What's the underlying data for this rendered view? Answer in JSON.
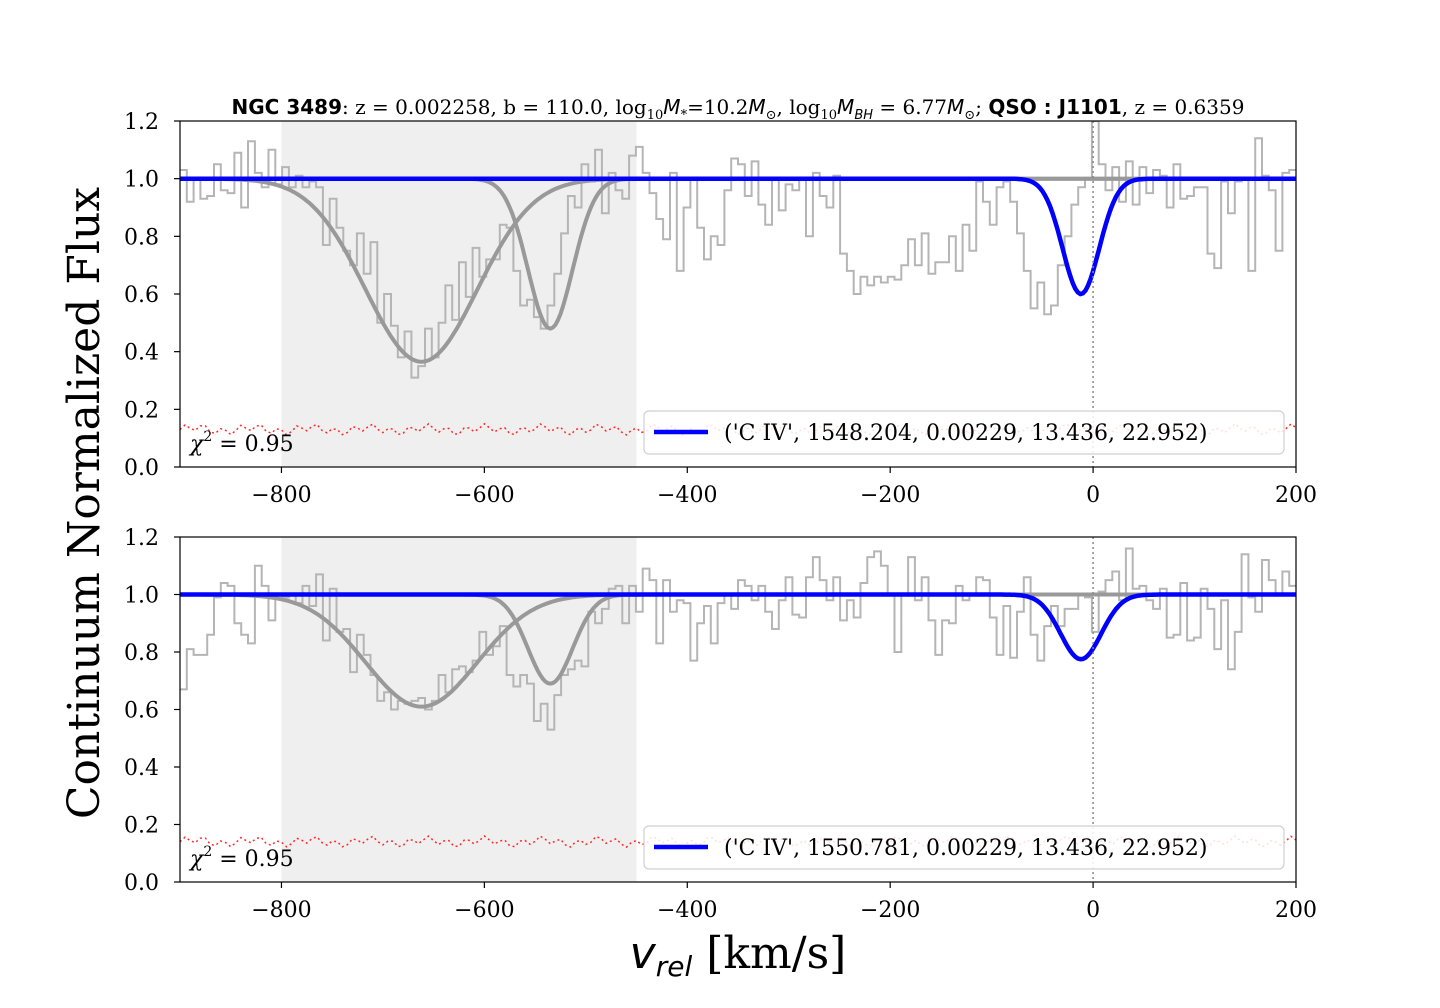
{
  "chart_data": {
    "type": "line",
    "title": {
      "galaxy": "NGC 3489",
      "z_text": ": z = 0.002258, b = 110.0, log",
      "mstar_val": "=10.2",
      "mbh_pre": ", log",
      "mbh_val": " = 6.77",
      "qso_label": "QSO : J1101",
      "qso_z": ", z = 0.6359"
    },
    "ylabel": "Continuum Normalized Flux",
    "xlabel_var": "v",
    "xlabel_sub": "rel",
    "xlabel_unit": " [km/s]",
    "xlim": [
      -900,
      200
    ],
    "ylim": [
      0.0,
      1.2
    ],
    "x_ticks": [
      -800,
      -600,
      -400,
      -200,
      0,
      200
    ],
    "x_tick_labels": [
      "−800",
      "−600",
      "−400",
      "−200",
      "0",
      "200"
    ],
    "y_ticks": [
      0.0,
      0.2,
      0.4,
      0.6,
      0.8,
      1.0,
      1.2
    ],
    "y_tick_labels": [
      "0.0",
      "0.2",
      "0.4",
      "0.6",
      "0.8",
      "1.0",
      "1.2"
    ],
    "shaded_region": [
      -800,
      -450
    ],
    "vline_x": 0,
    "panels": [
      {
        "legend_label": "('C IV', 1548.204, 0.00229, 13.436, 22.952)",
        "chi2_text": " = 0.95",
        "fit_component": {
          "center": -12,
          "depth": 0.4,
          "sigma": 18
        },
        "gray_components": [
          {
            "center": -662,
            "depth": 0.635,
            "sigma": 55
          },
          {
            "center": -535,
            "depth": 0.52,
            "sigma": 22
          }
        ],
        "error_level": 0.13,
        "spectrum_flux": [
          1.03,
          0.92,
          1.0,
          0.93,
          0.94,
          1.05,
          0.96,
          0.95,
          1.09,
          0.9,
          1.13,
          1.02,
          0.97,
          1.1,
          0.98,
          1.04,
          0.97,
          1.01,
          0.97,
          0.99,
          0.97,
          0.77,
          0.93,
          0.83,
          0.75,
          0.7,
          0.81,
          0.67,
          0.78,
          0.5,
          0.6,
          0.49,
          0.38,
          0.47,
          0.31,
          0.35,
          0.48,
          0.38,
          0.5,
          0.63,
          0.51,
          0.71,
          0.59,
          0.76,
          0.66,
          0.72,
          0.72,
          0.84,
          0.83,
          0.68,
          0.56,
          0.58,
          0.52,
          0.48,
          0.56,
          0.67,
          0.81,
          0.94,
          0.9,
          1.05,
          0.99,
          1.1,
          0.88,
          1.02,
          0.96,
          0.93,
          1.08,
          1.11,
          1.02,
          0.95,
          0.86,
          0.79,
          1.02,
          0.68,
          0.9,
          1.0,
          0.83,
          0.72,
          0.8,
          0.77,
          0.96,
          1.07,
          1.05,
          0.94,
          1.06,
          0.91,
          0.84,
          1.0,
          0.89,
          0.98,
          0.96,
          1.0,
          0.8,
          1.02,
          0.94,
          0.9,
          1.01,
          0.74,
          0.68,
          0.6,
          0.66,
          0.63,
          0.66,
          0.64,
          0.66,
          0.65,
          0.7,
          0.79,
          0.7,
          0.81,
          0.67,
          0.71,
          0.71,
          0.8,
          0.68,
          0.84,
          0.75,
          0.99,
          0.92,
          0.84,
          0.97,
          0.99,
          0.92,
          0.81,
          0.68,
          0.55,
          0.64,
          0.53,
          0.56,
          0.7,
          0.8,
          0.91,
          0.97,
          1.0,
          1.2,
          1.05,
          0.96,
          1.04,
          0.92,
          1.06,
          0.91,
          1.04,
          0.95,
          1.03,
          1.01,
          0.9,
          1.05,
          0.93,
          0.94,
          0.97,
          0.97,
          0.74,
          0.69,
          0.99,
          0.88,
          0.99,
          1.0,
          0.68,
          1.14,
          1.01,
          0.96,
          0.75,
          1.02,
          1.03
        ]
      },
      {
        "legend_label": "('C IV', 1550.781, 0.00229, 13.436, 22.952)",
        "chi2_text": " = 0.95",
        "fit_component": {
          "center": -12,
          "depth": 0.225,
          "sigma": 20
        },
        "gray_components": [
          {
            "center": -662,
            "depth": 0.39,
            "sigma": 55
          },
          {
            "center": -535,
            "depth": 0.31,
            "sigma": 22
          }
        ],
        "error_level": 0.14,
        "spectrum_flux": [
          0.67,
          0.81,
          0.79,
          0.79,
          0.86,
          0.99,
          1.04,
          1.03,
          0.9,
          0.86,
          0.83,
          1.1,
          1.03,
          0.91,
          1.0,
          0.99,
          1.0,
          0.97,
          1.03,
          0.96,
          1.07,
          0.84,
          1.02,
          0.87,
          0.88,
          0.73,
          0.86,
          0.79,
          0.72,
          0.63,
          0.66,
          0.6,
          0.63,
          0.62,
          0.63,
          0.64,
          0.6,
          0.63,
          0.72,
          0.66,
          0.74,
          0.75,
          0.73,
          0.77,
          0.87,
          0.79,
          0.82,
          0.89,
          0.72,
          0.68,
          0.72,
          0.69,
          0.56,
          0.62,
          0.53,
          0.65,
          0.72,
          0.74,
          0.77,
          0.75,
          0.94,
          0.9,
          0.95,
          1.02,
          1.03,
          0.9,
          1.03,
          0.94,
          1.09,
          1.05,
          0.83,
          1.05,
          0.94,
          0.98,
          0.97,
          0.77,
          0.9,
          0.96,
          0.83,
          0.97,
          1.0,
          0.95,
          1.05,
          1.03,
          0.98,
          1.03,
          0.94,
          0.88,
          0.98,
          1.06,
          0.93,
          0.92,
          1.06,
          1.13,
          1.05,
          0.98,
          1.06,
          0.91,
          0.98,
          0.92,
          1.04,
          1.13,
          1.15,
          1.1,
          1.0,
          0.8,
          1.0,
          1.13,
          0.98,
          1.06,
          0.91,
          0.79,
          0.91,
          0.9,
          1.03,
          0.98,
          1.0,
          1.06,
          1.05,
          0.92,
          0.79,
          0.96,
          0.78,
          0.94,
          1.06,
          0.86,
          0.77,
          0.89,
          0.96,
          0.89,
          0.95,
          0.95,
          1.0,
          0.99,
          0.87,
          1.01,
          1.05,
          1.08,
          0.98,
          1.16,
          1.02,
          1.03,
          0.98,
          0.95,
          1.02,
          0.85,
          0.86,
          1.04,
          0.84,
          0.85,
          1.02,
          0.95,
          0.81,
          0.98,
          0.74,
          0.87,
          1.14,
          0.99,
          0.94,
          1.12,
          1.05,
          1.0,
          1.08,
          1.03
        ]
      }
    ]
  }
}
